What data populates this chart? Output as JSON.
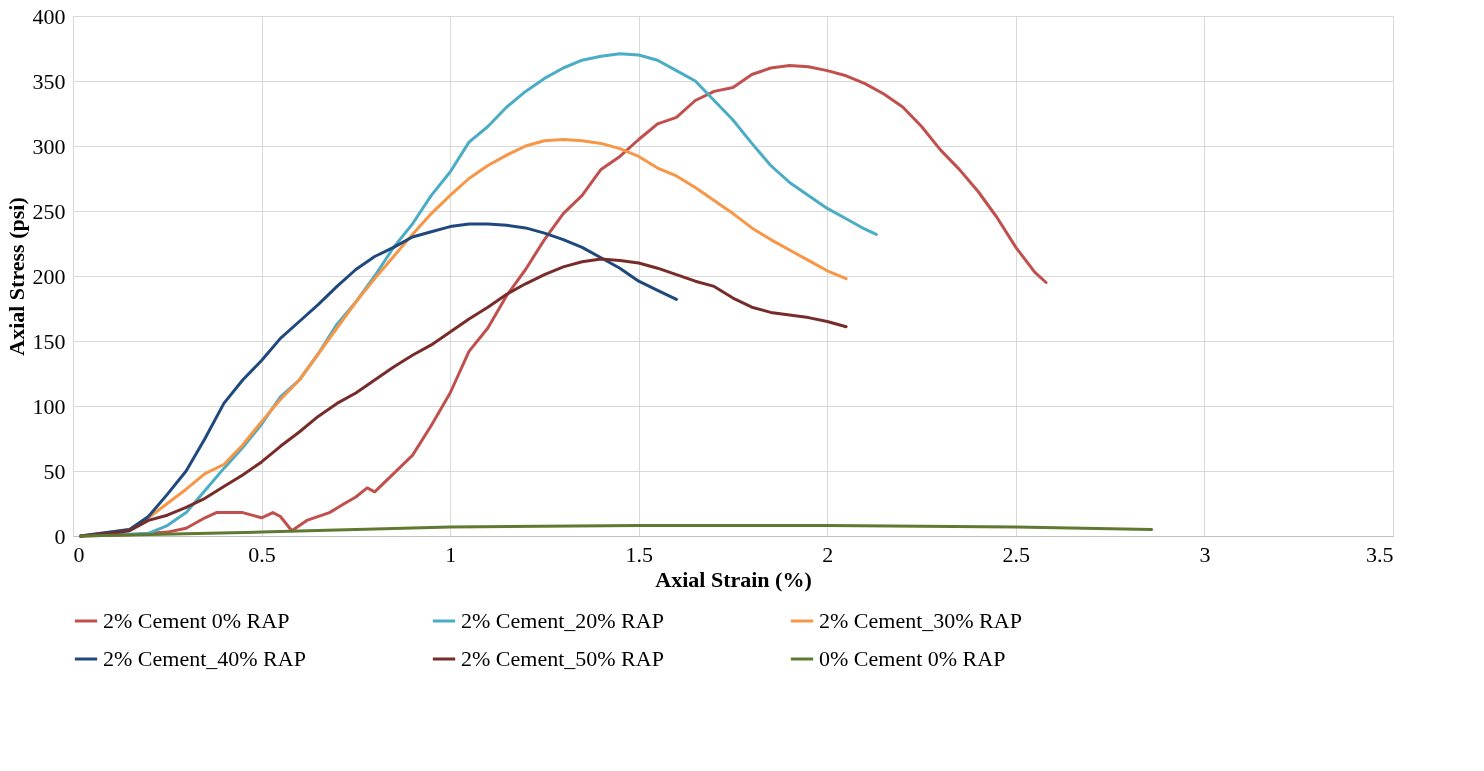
{
  "chart_data": {
    "type": "line",
    "xlabel": "Axial Strain (%)",
    "ylabel": "Axial Stress (psi)",
    "xlim": [
      0,
      3.5
    ],
    "xticks": [
      0,
      0.5,
      1,
      1.5,
      2,
      2.5,
      3,
      3.5
    ],
    "ylim": [
      0,
      400
    ],
    "yticks": [
      0,
      50,
      100,
      150,
      200,
      250,
      300,
      350,
      400
    ],
    "grid": true,
    "legend": "bottom",
    "marker": "none",
    "line_style": "solid",
    "series": [
      {
        "name": "2% Cement 0% RAP",
        "color": "#c0504d",
        "x": [
          0.02,
          0.15,
          0.25,
          0.3,
          0.35,
          0.38,
          0.45,
          0.5,
          0.53,
          0.55,
          0.58,
          0.62,
          0.68,
          0.72,
          0.75,
          0.78,
          0.8,
          0.85,
          0.9,
          0.95,
          1.0,
          1.05,
          1.1,
          1.15,
          1.2,
          1.25,
          1.3,
          1.35,
          1.4,
          1.45,
          1.5,
          1.55,
          1.6,
          1.65,
          1.7,
          1.75,
          1.8,
          1.85,
          1.9,
          1.95,
          2.0,
          2.05,
          2.1,
          2.15,
          2.2,
          2.25,
          2.3,
          2.35,
          2.4,
          2.45,
          2.5,
          2.55,
          2.58
        ],
        "values": [
          0,
          1,
          3,
          6,
          14,
          18,
          18,
          14,
          18,
          15,
          4,
          12,
          18,
          25,
          30,
          37,
          34,
          48,
          62,
          85,
          110,
          142,
          160,
          185,
          205,
          228,
          248,
          262,
          282,
          292,
          305,
          317,
          322,
          335,
          342,
          345,
          355,
          360,
          362,
          361,
          358,
          354,
          348,
          340,
          330,
          315,
          297,
          282,
          265,
          245,
          222,
          203,
          195
        ]
      },
      {
        "name": "2% Cement_20% RAP",
        "color": "#4bacc6",
        "x": [
          0.02,
          0.2,
          0.25,
          0.3,
          0.35,
          0.4,
          0.45,
          0.5,
          0.55,
          0.6,
          0.65,
          0.7,
          0.75,
          0.8,
          0.85,
          0.9,
          0.95,
          1.0,
          1.05,
          1.1,
          1.15,
          1.2,
          1.25,
          1.3,
          1.35,
          1.4,
          1.45,
          1.5,
          1.55,
          1.6,
          1.65,
          1.7,
          1.75,
          1.8,
          1.85,
          1.9,
          1.95,
          2.0,
          2.05,
          2.1,
          2.13
        ],
        "values": [
          0,
          2,
          8,
          18,
          35,
          52,
          68,
          86,
          107,
          120,
          140,
          163,
          180,
          200,
          222,
          240,
          262,
          280,
          303,
          315,
          330,
          342,
          352,
          360,
          366,
          369,
          371,
          370,
          366,
          358,
          350,
          335,
          320,
          302,
          285,
          272,
          262,
          252,
          244,
          236,
          232
        ]
      },
      {
        "name": "2% Cement_30% RAP",
        "color": "#f79646",
        "x": [
          0.02,
          0.15,
          0.2,
          0.25,
          0.3,
          0.35,
          0.4,
          0.45,
          0.5,
          0.55,
          0.6,
          0.65,
          0.7,
          0.75,
          0.8,
          0.85,
          0.9,
          0.95,
          1.0,
          1.05,
          1.1,
          1.15,
          1.2,
          1.25,
          1.3,
          1.35,
          1.4,
          1.45,
          1.5,
          1.55,
          1.6,
          1.65,
          1.7,
          1.75,
          1.8,
          1.85,
          1.9,
          1.95,
          2.0,
          2.05
        ],
        "values": [
          0,
          5,
          14,
          25,
          36,
          48,
          55,
          70,
          88,
          105,
          120,
          140,
          160,
          180,
          198,
          215,
          232,
          248,
          262,
          275,
          285,
          293,
          300,
          304,
          305,
          304,
          302,
          298,
          292,
          283,
          277,
          268,
          258,
          248,
          237,
          228,
          220,
          212,
          204,
          198
        ]
      },
      {
        "name": "2% Cement_40% RAP",
        "color": "#1f497d",
        "x": [
          0.02,
          0.1,
          0.15,
          0.2,
          0.25,
          0.3,
          0.35,
          0.4,
          0.45,
          0.5,
          0.55,
          0.6,
          0.65,
          0.7,
          0.75,
          0.8,
          0.85,
          0.9,
          0.95,
          1.0,
          1.05,
          1.1,
          1.15,
          1.2,
          1.25,
          1.3,
          1.35,
          1.4,
          1.45,
          1.5,
          1.55,
          1.6
        ],
        "values": [
          0,
          3,
          5,
          15,
          32,
          50,
          75,
          102,
          120,
          135,
          152,
          165,
          178,
          192,
          205,
          215,
          222,
          230,
          234,
          238,
          240,
          240,
          239,
          237,
          233,
          228,
          222,
          214,
          206,
          196,
          189,
          182
        ]
      },
      {
        "name": "2% Cement_50% RAP",
        "color": "#772c2a",
        "x": [
          0.02,
          0.1,
          0.15,
          0.2,
          0.25,
          0.3,
          0.35,
          0.4,
          0.45,
          0.5,
          0.55,
          0.6,
          0.65,
          0.7,
          0.75,
          0.8,
          0.85,
          0.9,
          0.95,
          1.0,
          1.05,
          1.1,
          1.15,
          1.2,
          1.25,
          1.3,
          1.35,
          1.4,
          1.45,
          1.5,
          1.55,
          1.6,
          1.65,
          1.7,
          1.75,
          1.8,
          1.85,
          1.9,
          1.95,
          2.0,
          2.05
        ],
        "values": [
          0,
          2,
          4,
          12,
          16,
          22,
          29,
          38,
          47,
          57,
          69,
          80,
          92,
          102,
          110,
          120,
          130,
          139,
          147,
          157,
          167,
          176,
          186,
          194,
          201,
          207,
          211,
          213,
          212,
          210,
          206,
          201,
          196,
          192,
          183,
          176,
          172,
          170,
          168,
          165,
          161
        ]
      },
      {
        "name": "0% Cement 0% RAP",
        "color": "#5f7a30",
        "x": [
          0.02,
          0.5,
          1.0,
          1.5,
          2.0,
          2.5,
          2.86
        ],
        "values": [
          0,
          3,
          7,
          8,
          8,
          7,
          5
        ]
      }
    ]
  }
}
